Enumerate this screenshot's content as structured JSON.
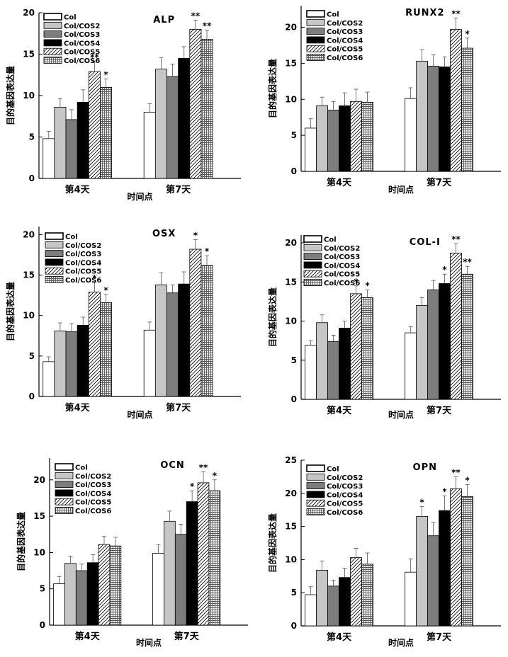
{
  "legend_labels": [
    "Col",
    "Col/COS2",
    "Col/COS3",
    "Col/COS4",
    "Col/COS5",
    "Col/COS6"
  ],
  "series_styles": [
    "white",
    "lightgray",
    "gray",
    "black",
    "hatch",
    "grid"
  ],
  "colors": {
    "lightgray": "#c6c6c6",
    "gray": "#7d7d7d",
    "black": "#000000"
  },
  "chart_data": [
    {
      "type": "bar",
      "title": "ALP",
      "xlabel": "时间点",
      "ylabel": "目的基因表达量",
      "categories": [
        "第4天",
        "第7天"
      ],
      "ylim": [
        0,
        20
      ],
      "yticks": [
        0,
        5,
        10,
        15,
        20
      ],
      "series": [
        {
          "name": "Col",
          "values": [
            4.8,
            8.0
          ],
          "errors": [
            0.9,
            1.0
          ],
          "sig": [
            "",
            ""
          ]
        },
        {
          "name": "Col/COS2",
          "values": [
            8.6,
            13.2
          ],
          "errors": [
            1.0,
            1.4
          ],
          "sig": [
            "",
            ""
          ]
        },
        {
          "name": "Col/COS3",
          "values": [
            7.1,
            12.3
          ],
          "errors": [
            1.2,
            1.5
          ],
          "sig": [
            "",
            ""
          ]
        },
        {
          "name": "Col/COS4",
          "values": [
            9.2,
            14.5
          ],
          "errors": [
            1.5,
            1.4
          ],
          "sig": [
            "",
            ""
          ]
        },
        {
          "name": "Col/COS5",
          "values": [
            12.9,
            18.0
          ],
          "errors": [
            1.2,
            1.1
          ],
          "sig": [
            "**",
            "**"
          ]
        },
        {
          "name": "Col/COS6",
          "values": [
            11.0,
            16.8
          ],
          "errors": [
            1.0,
            1.1
          ],
          "sig": [
            "*",
            "**"
          ]
        }
      ]
    },
    {
      "type": "bar",
      "title": "RUNX2",
      "xlabel": "时间点",
      "ylabel": "目的基因表达量",
      "categories": [
        "第4天",
        "第7天"
      ],
      "ylim": [
        0,
        23
      ],
      "yticks": [
        0,
        5,
        10,
        15,
        20
      ],
      "series": [
        {
          "name": "Col",
          "values": [
            6.0,
            10.1
          ],
          "errors": [
            1.3,
            1.5
          ],
          "sig": [
            "",
            ""
          ]
        },
        {
          "name": "Col/COS2",
          "values": [
            9.1,
            15.3
          ],
          "errors": [
            1.2,
            1.6
          ],
          "sig": [
            "",
            ""
          ]
        },
        {
          "name": "Col/COS3",
          "values": [
            8.5,
            14.6
          ],
          "errors": [
            1.2,
            1.6
          ],
          "sig": [
            "",
            ""
          ]
        },
        {
          "name": "Col/COS4",
          "values": [
            9.1,
            14.5
          ],
          "errors": [
            1.8,
            1.4
          ],
          "sig": [
            "",
            ""
          ]
        },
        {
          "name": "Col/COS5",
          "values": [
            9.7,
            19.7
          ],
          "errors": [
            1.7,
            1.6
          ],
          "sig": [
            "",
            "**"
          ]
        },
        {
          "name": "Col/COS6",
          "values": [
            9.6,
            17.1
          ],
          "errors": [
            1.4,
            1.4
          ],
          "sig": [
            "",
            "*"
          ]
        }
      ]
    },
    {
      "type": "bar",
      "title": "OSX",
      "xlabel": "时间点",
      "ylabel": "目的基因表达量",
      "categories": [
        "第4天",
        "第7天"
      ],
      "ylim": [
        0,
        21
      ],
      "yticks": [
        0,
        5,
        10,
        15,
        20
      ],
      "series": [
        {
          "name": "Col",
          "values": [
            4.3,
            8.2
          ],
          "errors": [
            0.6,
            1.0
          ],
          "sig": [
            "",
            ""
          ]
        },
        {
          "name": "Col/COS2",
          "values": [
            8.1,
            13.8
          ],
          "errors": [
            1.0,
            1.5
          ],
          "sig": [
            "",
            ""
          ]
        },
        {
          "name": "Col/COS3",
          "values": [
            8.0,
            12.8
          ],
          "errors": [
            1.0,
            1.0
          ],
          "sig": [
            "",
            ""
          ]
        },
        {
          "name": "Col/COS4",
          "values": [
            8.8,
            13.9
          ],
          "errors": [
            1.0,
            1.5
          ],
          "sig": [
            "",
            ""
          ]
        },
        {
          "name": "Col/COS5",
          "values": [
            12.9,
            18.2
          ],
          "errors": [
            1.2,
            1.2
          ],
          "sig": [
            "*",
            "*"
          ]
        },
        {
          "name": "Col/COS6",
          "values": [
            11.6,
            16.2
          ],
          "errors": [
            1.0,
            1.2
          ],
          "sig": [
            "*",
            "*"
          ]
        }
      ]
    },
    {
      "type": "bar",
      "title": "COL-Ⅰ",
      "xlabel": "时间点",
      "ylabel": "目的基因表达量",
      "categories": [
        "第4天",
        "第7天"
      ],
      "ylim": [
        0,
        21
      ],
      "yticks": [
        0,
        5,
        10,
        15,
        20
      ],
      "series": [
        {
          "name": "Col",
          "values": [
            6.9,
            8.5
          ],
          "errors": [
            0.6,
            0.8
          ],
          "sig": [
            "",
            ""
          ]
        },
        {
          "name": "Col/COS2",
          "values": [
            9.8,
            12.0
          ],
          "errors": [
            1.0,
            1.0
          ],
          "sig": [
            "",
            ""
          ]
        },
        {
          "name": "Col/COS3",
          "values": [
            7.4,
            14.0
          ],
          "errors": [
            0.8,
            1.2
          ],
          "sig": [
            "",
            ""
          ]
        },
        {
          "name": "Col/COS4",
          "values": [
            9.1,
            14.8
          ],
          "errors": [
            0.9,
            1.2
          ],
          "sig": [
            "",
            "*"
          ]
        },
        {
          "name": "Col/COS5",
          "values": [
            13.5,
            18.7
          ],
          "errors": [
            1.0,
            1.2
          ],
          "sig": [
            "*",
            "**"
          ]
        },
        {
          "name": "Col/COS6",
          "values": [
            13.0,
            16.0
          ],
          "errors": [
            1.0,
            1.0
          ],
          "sig": [
            "*",
            "**"
          ]
        }
      ]
    },
    {
      "type": "bar",
      "title": "OCN",
      "xlabel": "时间点",
      "ylabel": "目的基因表达量",
      "categories": [
        "第4天",
        "第7天"
      ],
      "ylim": [
        0,
        23
      ],
      "yticks": [
        0,
        5,
        10,
        15,
        20
      ],
      "series": [
        {
          "name": "Col",
          "values": [
            5.7,
            9.9
          ],
          "errors": [
            1.0,
            1.2
          ],
          "sig": [
            "",
            ""
          ]
        },
        {
          "name": "Col/COS2",
          "values": [
            8.5,
            14.3
          ],
          "errors": [
            1.0,
            1.4
          ],
          "sig": [
            "",
            ""
          ]
        },
        {
          "name": "Col/COS3",
          "values": [
            7.5,
            12.5
          ],
          "errors": [
            0.9,
            1.4
          ],
          "sig": [
            "",
            ""
          ]
        },
        {
          "name": "Col/COS4",
          "values": [
            8.6,
            17.0
          ],
          "errors": [
            1.1,
            1.5
          ],
          "sig": [
            "",
            "*"
          ]
        },
        {
          "name": "Col/COS5",
          "values": [
            11.1,
            19.6
          ],
          "errors": [
            1.1,
            1.5
          ],
          "sig": [
            "",
            "**"
          ]
        },
        {
          "name": "Col/COS6",
          "values": [
            10.9,
            18.5
          ],
          "errors": [
            1.2,
            1.5
          ],
          "sig": [
            "",
            "*"
          ]
        }
      ]
    },
    {
      "type": "bar",
      "title": "OPN",
      "xlabel": "时间点",
      "ylabel": "目的基因表达量",
      "categories": [
        "第4天",
        "第7天"
      ],
      "ylim": [
        0,
        25
      ],
      "yticks": [
        0,
        5,
        10,
        15,
        20,
        25
      ],
      "series": [
        {
          "name": "Col",
          "values": [
            4.7,
            8.1
          ],
          "errors": [
            1.2,
            2.0
          ],
          "sig": [
            "",
            ""
          ]
        },
        {
          "name": "Col/COS2",
          "values": [
            8.4,
            16.5
          ],
          "errors": [
            1.4,
            1.5
          ],
          "sig": [
            "",
            "*"
          ]
        },
        {
          "name": "Col/COS3",
          "values": [
            6.0,
            13.6
          ],
          "errors": [
            0.9,
            2.0
          ],
          "sig": [
            "",
            ""
          ]
        },
        {
          "name": "Col/COS4",
          "values": [
            7.3,
            17.4
          ],
          "errors": [
            1.4,
            2.2
          ],
          "sig": [
            "",
            "*"
          ]
        },
        {
          "name": "Col/COS5",
          "values": [
            10.3,
            20.7
          ],
          "errors": [
            1.4,
            1.8
          ],
          "sig": [
            "",
            "**"
          ]
        },
        {
          "name": "Col/COS6",
          "values": [
            9.3,
            19.5
          ],
          "errors": [
            1.7,
            1.8
          ],
          "sig": [
            "",
            "*"
          ]
        }
      ]
    }
  ]
}
